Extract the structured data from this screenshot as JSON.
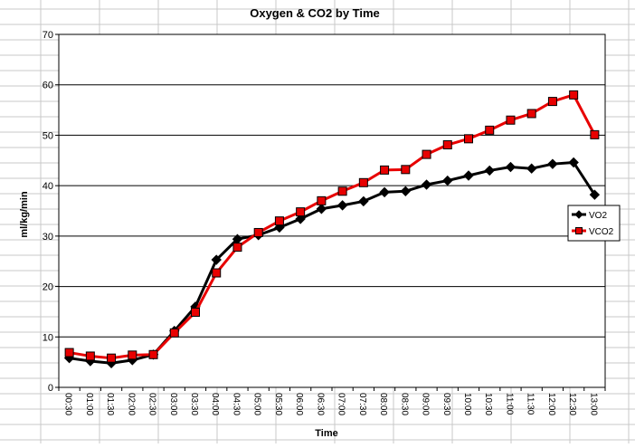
{
  "chart_data": {
    "type": "line",
    "title": "Oxygen & CO2 by Time",
    "xlabel": "Time",
    "ylabel": "ml/kg/min",
    "ylim": [
      0,
      70
    ],
    "yticks": [
      0,
      10,
      20,
      30,
      40,
      50,
      60,
      70
    ],
    "grid": true,
    "legend_position": "right",
    "categories": [
      "00:30",
      "01:00",
      "01:30",
      "02:00",
      "02:30",
      "03:00",
      "03:30",
      "04:00",
      "04:30",
      "05:00",
      "05:30",
      "06:00",
      "06:30",
      "07:00",
      "07:30",
      "08:00",
      "08:30",
      "09:00",
      "09:30",
      "10:00",
      "10:30",
      "11:00",
      "11:30",
      "12:00",
      "12:30",
      "13:00"
    ],
    "series": [
      {
        "name": "VO2",
        "color": "#000000",
        "marker": "diamond",
        "values": [
          5.8,
          5.2,
          4.8,
          5.4,
          6.5,
          11.2,
          16.0,
          25.3,
          29.4,
          30.2,
          31.7,
          33.4,
          35.4,
          36.1,
          36.9,
          38.7,
          38.9,
          40.2,
          41.0,
          42.0,
          43.0,
          43.7,
          43.4,
          44.3,
          44.6,
          38.2
        ]
      },
      {
        "name": "VCO2",
        "color": "#e80000",
        "marker": "square",
        "values": [
          6.9,
          6.2,
          5.8,
          6.4,
          6.5,
          10.8,
          14.9,
          22.7,
          27.8,
          30.7,
          33.0,
          34.8,
          37.0,
          38.9,
          40.6,
          43.1,
          43.2,
          46.2,
          48.1,
          49.3,
          51.0,
          53.0,
          54.3,
          56.7,
          58.0,
          50.1
        ]
      }
    ]
  }
}
